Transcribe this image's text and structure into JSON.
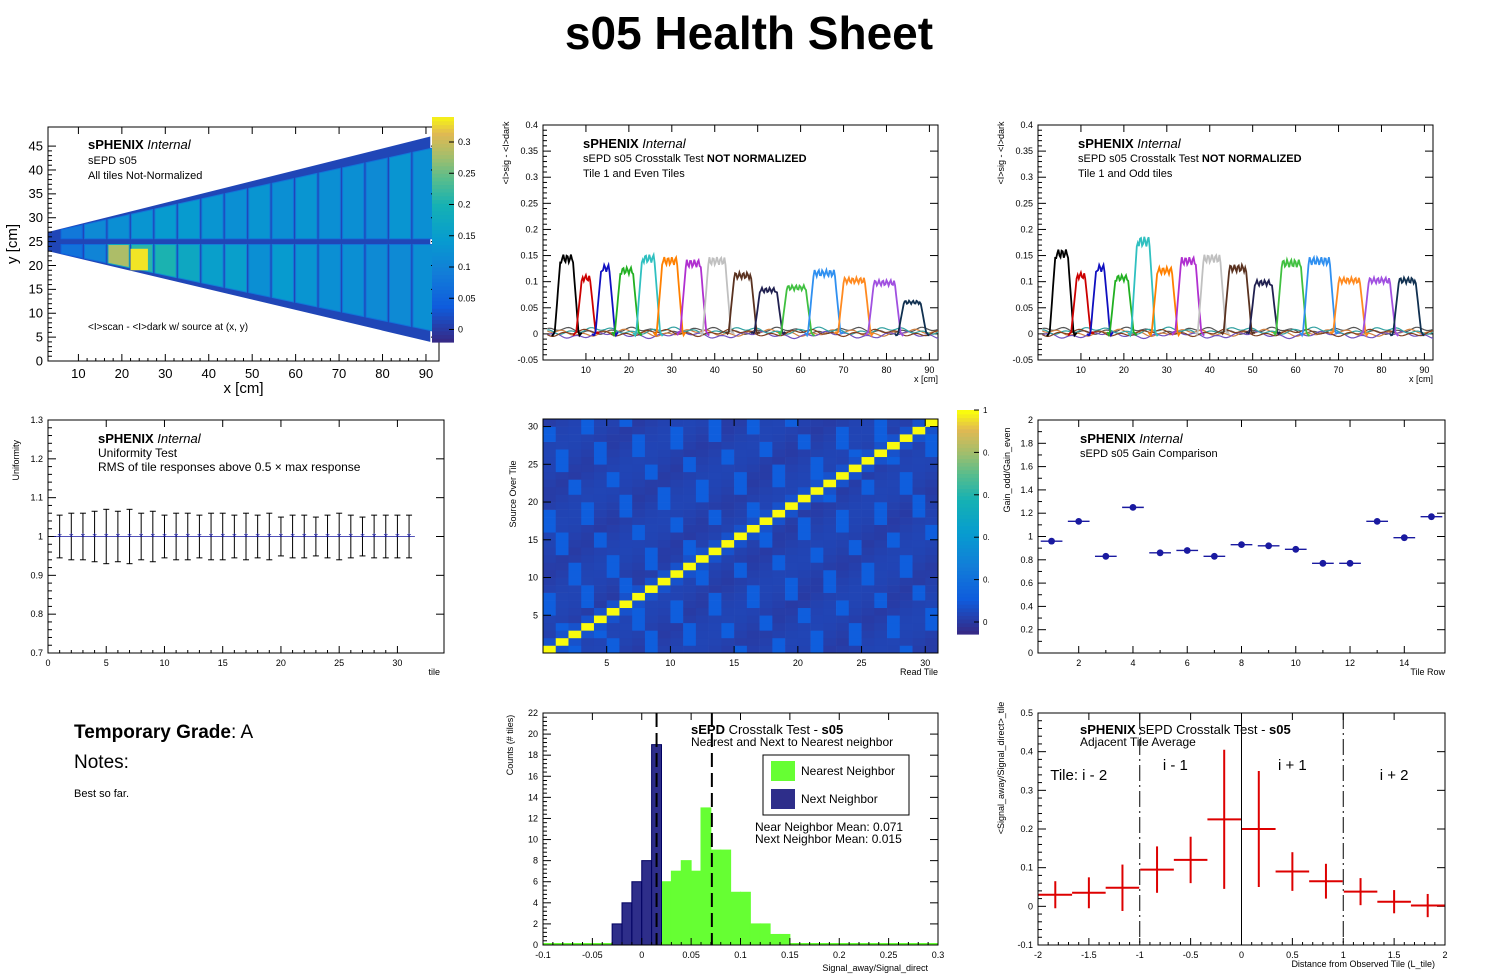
{
  "page": {
    "title": "s05 Health Sheet"
  },
  "grade": {
    "label": "Temporary Grade",
    "value": "A",
    "notes_label": "Notes:",
    "notes": "Best so far."
  },
  "chart_data": [
    {
      "id": "map",
      "type": "heatmap",
      "title": "",
      "text": {
        "brand": "sPHENIX",
        "internal": "Internal",
        "line1": "sEPD s05",
        "line2": "All tiles Not-Normalized",
        "source_note": "<I>scan - <I>dark w/ source at (x, y)"
      },
      "xlabel": "x [cm]",
      "ylabel": "y [cm]",
      "xlim": [
        3,
        93
      ],
      "ylim": [
        0,
        49
      ],
      "xticks": [
        10,
        20,
        30,
        40,
        50,
        60,
        70,
        80,
        90
      ],
      "yticks": [
        0,
        5,
        10,
        15,
        20,
        25,
        30,
        35,
        40,
        45
      ],
      "zlim": [
        -0.02,
        0.34
      ],
      "zticks": [
        0,
        0.05,
        0.1,
        0.15,
        0.2,
        0.25,
        0.3
      ],
      "tiles_upper": [
        0.08,
        0.11,
        0.12,
        0.13,
        0.14,
        0.14,
        0.13,
        0.12,
        0.13,
        0.12,
        0.13,
        0.12,
        0.12,
        0.11,
        0.13,
        0.12
      ],
      "tiles_lower": [
        0.07,
        0.1,
        0.28,
        0.21,
        0.2,
        0.17,
        0.15,
        0.15,
        0.12,
        0.14,
        0.13,
        0.12,
        0.12,
        0.11,
        0.11,
        0.12
      ],
      "hotspot": {
        "x": 24,
        "y": 21,
        "value": 0.33
      }
    },
    {
      "id": "xtalk-even",
      "type": "line",
      "text": {
        "brand": "sPHENIX",
        "internal": "Internal",
        "line1": "sEPD s05 Crosstalk Test",
        "line1_bold": "NOT NORMALIZED",
        "line2": "Tile 1 and Even Tiles"
      },
      "xlabel": "x [cm]",
      "ylabel": "<I>sig - <I>dark",
      "xlim": [
        0,
        92
      ],
      "ylim": [
        -0.05,
        0.4
      ],
      "xticks": [
        10,
        20,
        30,
        40,
        50,
        60,
        70,
        80,
        90
      ],
      "yticks": [
        -0.05,
        0,
        0.05,
        0.1,
        0.15,
        0.2,
        0.25,
        0.3,
        0.35,
        0.4
      ],
      "peaks": [
        {
          "center": 5.5,
          "width": 4.0,
          "height": 0.155,
          "color": "#000000"
        },
        {
          "center": 10.0,
          "width": 3.0,
          "height": 0.115,
          "color": "#cc0000"
        },
        {
          "center": 14.5,
          "width": 3.0,
          "height": 0.135,
          "color": "#1010c0"
        },
        {
          "center": 19.5,
          "width": 4.0,
          "height": 0.13,
          "color": "#22b022"
        },
        {
          "center": 24.5,
          "width": 4.0,
          "height": 0.155,
          "color": "#30c0c0"
        },
        {
          "center": 29.5,
          "width": 4.5,
          "height": 0.15,
          "color": "#ff8000"
        },
        {
          "center": 35.0,
          "width": 4.5,
          "height": 0.145,
          "color": "#b030d0"
        },
        {
          "center": 40.5,
          "width": 5.0,
          "height": 0.15,
          "color": "#c0c0c0"
        },
        {
          "center": 46.5,
          "width": 5.0,
          "height": 0.12,
          "color": "#5a3220"
        },
        {
          "center": 52.5,
          "width": 5.0,
          "height": 0.09,
          "color": "#202050"
        },
        {
          "center": 59.0,
          "width": 5.5,
          "height": 0.095,
          "color": "#40c040"
        },
        {
          "center": 65.5,
          "width": 6.0,
          "height": 0.125,
          "color": "#3090f0"
        },
        {
          "center": 72.5,
          "width": 6.0,
          "height": 0.11,
          "color": "#ff8a20"
        },
        {
          "center": 79.5,
          "width": 6.0,
          "height": 0.105,
          "color": "#a050e0"
        },
        {
          "center": 86.0,
          "width": 5.0,
          "height": 0.065,
          "color": "#103050"
        }
      ]
    },
    {
      "id": "xtalk-odd",
      "type": "line",
      "text": {
        "brand": "sPHENIX",
        "internal": "Internal",
        "line1": "sEPD s05 Crosstalk Test",
        "line1_bold": "NOT NORMALIZED",
        "line2": "Tile 1 and Odd tiles"
      },
      "xlabel": "x [cm]",
      "ylabel": "<I>sig - <I>dark",
      "xlim": [
        0,
        92
      ],
      "ylim": [
        -0.05,
        0.4
      ],
      "xticks": [
        10,
        20,
        30,
        40,
        50,
        60,
        70,
        80,
        90
      ],
      "yticks": [
        -0.05,
        0,
        0.05,
        0.1,
        0.15,
        0.2,
        0.25,
        0.3,
        0.35,
        0.4
      ],
      "peaks": [
        {
          "center": 5.5,
          "width": 4.0,
          "height": 0.165,
          "color": "#000000"
        },
        {
          "center": 10.0,
          "width": 3.0,
          "height": 0.12,
          "color": "#cc0000"
        },
        {
          "center": 14.5,
          "width": 3.0,
          "height": 0.135,
          "color": "#1010c0"
        },
        {
          "center": 19.5,
          "width": 4.0,
          "height": 0.115,
          "color": "#22b022"
        },
        {
          "center": 24.5,
          "width": 4.0,
          "height": 0.19,
          "color": "#30c0c0"
        },
        {
          "center": 29.5,
          "width": 4.5,
          "height": 0.13,
          "color": "#ff8000"
        },
        {
          "center": 35.0,
          "width": 4.5,
          "height": 0.15,
          "color": "#b030d0"
        },
        {
          "center": 40.5,
          "width": 5.0,
          "height": 0.155,
          "color": "#c0c0c0"
        },
        {
          "center": 46.5,
          "width": 5.0,
          "height": 0.135,
          "color": "#5a3220"
        },
        {
          "center": 52.5,
          "width": 5.0,
          "height": 0.105,
          "color": "#202050"
        },
        {
          "center": 59.0,
          "width": 5.5,
          "height": 0.145,
          "color": "#40c040"
        },
        {
          "center": 65.5,
          "width": 6.0,
          "height": 0.15,
          "color": "#3090f0"
        },
        {
          "center": 72.5,
          "width": 6.0,
          "height": 0.11,
          "color": "#ff8a20"
        },
        {
          "center": 79.5,
          "width": 6.0,
          "height": 0.11,
          "color": "#a050e0"
        },
        {
          "center": 86.0,
          "width": 5.0,
          "height": 0.11,
          "color": "#103050"
        }
      ]
    },
    {
      "id": "uniformity",
      "type": "scatter",
      "text": {
        "brand": "sPHENIX",
        "internal": "Internal",
        "line1": "Uniformity Test",
        "line2": "RMS of tile responses above 0.5 × max response"
      },
      "xlabel": "tile",
      "ylabel": "Uniformity",
      "xlim": [
        0,
        34
      ],
      "ylim": [
        0.7,
        1.3
      ],
      "xticks": [
        0,
        5,
        10,
        15,
        20,
        25,
        30
      ],
      "yticks": [
        0.7,
        0.8,
        0.9,
        1,
        1.1,
        1.2,
        1.3
      ],
      "x": [
        1,
        2,
        3,
        4,
        5,
        6,
        7,
        8,
        9,
        10,
        11,
        12,
        13,
        14,
        15,
        16,
        17,
        18,
        19,
        20,
        21,
        22,
        23,
        24,
        25,
        26,
        27,
        28,
        29,
        30,
        31
      ],
      "y": [
        1,
        1,
        1,
        1,
        1,
        1,
        1,
        1,
        1,
        1,
        1,
        1,
        1,
        1,
        1,
        1,
        1,
        1,
        1,
        1,
        1,
        1,
        1,
        1,
        1,
        1,
        1,
        1,
        1,
        1,
        1
      ],
      "err": [
        0.055,
        0.06,
        0.06,
        0.065,
        0.07,
        0.065,
        0.07,
        0.06,
        0.065,
        0.055,
        0.06,
        0.06,
        0.055,
        0.06,
        0.06,
        0.055,
        0.06,
        0.055,
        0.06,
        0.05,
        0.055,
        0.055,
        0.05,
        0.055,
        0.06,
        0.055,
        0.05,
        0.055,
        0.055,
        0.055,
        0.055
      ]
    },
    {
      "id": "matrix",
      "type": "heatmap",
      "xlabel": "Read Tile",
      "ylabel": "Source Over Tile",
      "xlim": [
        0,
        31
      ],
      "ylim": [
        0,
        31
      ],
      "xticks": [
        5,
        10,
        15,
        20,
        25,
        30
      ],
      "yticks": [
        5,
        10,
        15,
        20,
        25,
        30
      ],
      "zticks_labels": [
        "0",
        "0.",
        "0.",
        "0.",
        "0.",
        "1"
      ],
      "diagonal_value": 1,
      "background_value": 0.05
    },
    {
      "id": "gain",
      "type": "scatter",
      "text": {
        "brand": "sPHENIX",
        "internal": "Internal",
        "line1": "sEPD s05 Gain Comparison"
      },
      "xlabel": "Tile Row",
      "ylabel": "Gain_odd/Gain_even",
      "xlim": [
        0.5,
        15.5
      ],
      "ylim": [
        0,
        2
      ],
      "xticks": [
        2,
        4,
        6,
        8,
        10,
        12,
        14
      ],
      "yticks": [
        0,
        0.2,
        0.4,
        0.6,
        0.8,
        1,
        1.2,
        1.4,
        1.6,
        1.8,
        2
      ],
      "x": [
        1,
        2,
        3,
        4,
        5,
        6,
        7,
        8,
        9,
        10,
        11,
        12,
        13,
        14,
        15
      ],
      "y": [
        0.96,
        1.13,
        0.83,
        1.25,
        0.86,
        0.88,
        0.83,
        0.93,
        0.92,
        0.89,
        0.77,
        0.77,
        1.13,
        0.99,
        1.17
      ]
    },
    {
      "id": "neighbor-hist",
      "type": "bar",
      "text": {
        "brand": "sEPD",
        "title_rest": "Crosstalk Test - ",
        "title_bold": "s05",
        "line2": "Nearest and Next to Nearest neighbor",
        "mean1": "Near Neighbor Mean: 0.071",
        "mean2": "Next Neighbor Mean: 0.015"
      },
      "xlabel": "Signal_away/Signal_direct",
      "ylabel": "Counts (# tiles)",
      "xlim": [
        -0.1,
        0.3
      ],
      "ylim": [
        0,
        22
      ],
      "xticks": [
        -0.1,
        -0.05,
        0,
        0.05,
        0.1,
        0.15,
        0.2,
        0.25,
        0.3
      ],
      "yticks": [
        0,
        2,
        4,
        6,
        8,
        10,
        12,
        14,
        16,
        18,
        20,
        22
      ],
      "bin_width": 0.01,
      "series": [
        {
          "name": "Nearest Neighbor",
          "color": "#66ff33",
          "bins_start": [
            0.02,
            0.03,
            0.04,
            0.05,
            0.06,
            0.07,
            0.08,
            0.09,
            0.1,
            0.11,
            0.12,
            0.13,
            0.14
          ],
          "values": [
            6,
            7,
            8,
            7,
            13,
            9,
            9,
            5,
            5,
            2,
            2,
            1,
            1
          ]
        },
        {
          "name": "Next Neighbor",
          "color": "#2e2e8a",
          "bins_start": [
            -0.03,
            -0.02,
            -0.01,
            0.0,
            0.01
          ],
          "values": [
            2,
            4,
            6,
            8,
            19
          ]
        }
      ],
      "means": [
        0.071,
        0.015
      ]
    },
    {
      "id": "adjacent",
      "type": "scatter",
      "text": {
        "brand": "sPHENIX",
        "title_rest": "sEPD Crosstalk Test - ",
        "title_bold": "s05",
        "line2": "Adjacent Tile Average"
      },
      "labels": [
        "Tile: i - 2",
        "i - 1",
        "i + 1",
        "i + 2"
      ],
      "xlabel": "Distance from Observed Tile (L_tile)",
      "ylabel": "<Signal_away/Signal_direct>_tile",
      "xlim": [
        -2,
        2
      ],
      "ylim": [
        -0.1,
        0.5
      ],
      "xticks": [
        -2,
        -1.5,
        -1,
        -0.5,
        0,
        0.5,
        1,
        1.5,
        2
      ],
      "yticks": [
        -0.1,
        0,
        0.1,
        0.2,
        0.3,
        0.4,
        0.5
      ],
      "x": [
        -1.83,
        -1.5,
        -1.17,
        -0.83,
        -0.5,
        -0.17,
        0.17,
        0.5,
        0.83,
        1.17,
        1.5,
        1.83
      ],
      "y": [
        0.03,
        0.035,
        0.048,
        0.095,
        0.12,
        0.225,
        0.2,
        0.09,
        0.065,
        0.038,
        0.012,
        0.002
      ],
      "yerr": [
        0.035,
        0.04,
        0.06,
        0.06,
        0.06,
        0.18,
        0.15,
        0.05,
        0.045,
        0.035,
        0.03,
        0.03
      ],
      "xerr": 0.165
    }
  ]
}
